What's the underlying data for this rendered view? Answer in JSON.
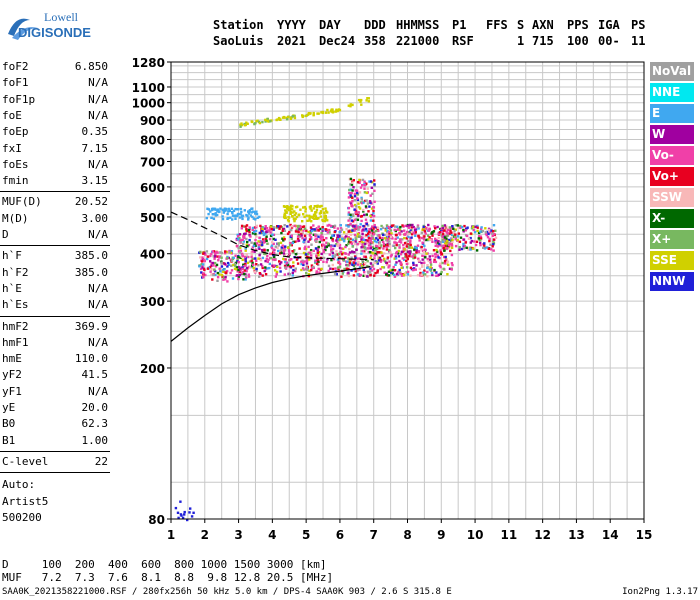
{
  "logo": {
    "line1": "Lowell",
    "line2": "DIGISONDE"
  },
  "header": {
    "row1": [
      "Station",
      "YYYY",
      "DAY",
      "DDD",
      "HHMMSS",
      "P1",
      "FFS",
      "S",
      "AXN",
      "PPS",
      "IGA",
      "PS"
    ],
    "row2": [
      "SaoLuis",
      "2021",
      "Dec24",
      "358",
      "221000",
      "RSF",
      "",
      "1",
      "715",
      "100",
      "00-",
      "11"
    ]
  },
  "params": {
    "group1": [
      {
        "name": "foF2",
        "value": "6.850"
      },
      {
        "name": "foF1",
        "value": "N/A"
      },
      {
        "name": "foF1p",
        "value": "N/A"
      },
      {
        "name": "foE",
        "value": "N/A"
      },
      {
        "name": "foEp",
        "value": "0.35"
      },
      {
        "name": "fxI",
        "value": "7.15"
      },
      {
        "name": "foEs",
        "value": "N/A"
      },
      {
        "name": "fmin",
        "value": "3.15"
      }
    ],
    "group2": [
      {
        "name": "MUF(D)",
        "value": "20.52"
      },
      {
        "name": "M(D)",
        "value": "3.00"
      },
      {
        "name": "D",
        "value": "N/A"
      }
    ],
    "group3": [
      {
        "name": "h`F",
        "value": "385.0"
      },
      {
        "name": "h`F2",
        "value": "385.0"
      },
      {
        "name": "h`E",
        "value": "N/A"
      },
      {
        "name": "h`Es",
        "value": "N/A"
      }
    ],
    "group4": [
      {
        "name": "hmF2",
        "value": "369.9"
      },
      {
        "name": "hmF1",
        "value": "N/A"
      },
      {
        "name": "hmE",
        "value": "110.0"
      },
      {
        "name": "yF2",
        "value": "41.5"
      },
      {
        "name": "yF1",
        "value": "N/A"
      },
      {
        "name": "yE",
        "value": "20.0"
      },
      {
        "name": "B0",
        "value": "62.3"
      },
      {
        "name": "B1",
        "value": "1.00"
      }
    ],
    "group5": [
      {
        "name": "C-level",
        "value": "22"
      }
    ],
    "auto": [
      "Auto:",
      "Artist5",
      "500200"
    ]
  },
  "legend": [
    {
      "label": "NoVal",
      "color": "#a0a0a0"
    },
    {
      "label": "NNE",
      "color": "#00e8f0"
    },
    {
      "label": "E",
      "color": "#40a8f0"
    },
    {
      "label": "W",
      "color": "#a000a0"
    },
    {
      "label": "Vo-",
      "color": "#f040a8"
    },
    {
      "label": "Vo+",
      "color": "#e80020"
    },
    {
      "label": "SSW",
      "color": "#f8b8b8"
    },
    {
      "label": "X-",
      "color": "#006800"
    },
    {
      "label": "X+",
      "color": "#78b860"
    },
    {
      "label": "SSE",
      "color": "#d0d000"
    },
    {
      "label": "NNW",
      "color": "#2020d8"
    }
  ],
  "muf_table": {
    "d_label": "D",
    "d_values": [
      "100",
      "200",
      "400",
      "600",
      "800",
      "1000",
      "1500",
      "3000"
    ],
    "d_unit": "[km]",
    "muf_label": "MUF",
    "muf_values": [
      "7.2",
      "7.3",
      "7.6",
      "8.1",
      "8.8",
      "9.8",
      "12.8",
      "20.5"
    ],
    "muf_unit": "[MHz]"
  },
  "footer": {
    "left": "SAA0K_2021358221000.RSF / 280fx256h 50 kHz 5.0 km / DPS-4 SAA0K 903 / 2.6 S 315.8 E",
    "right": "Ion2Png 1.3.17"
  },
  "chart_data": {
    "type": "scatter",
    "x_ticks": [
      1,
      2,
      3,
      4,
      5,
      6,
      7,
      8,
      9,
      10,
      11,
      12,
      13,
      14,
      15
    ],
    "y_ticks": [
      80,
      200,
      300,
      400,
      500,
      600,
      700,
      800,
      900,
      1000,
      1100,
      1280
    ],
    "xlim": [
      1,
      15
    ],
    "ylim": [
      80,
      1280
    ],
    "y_scale": "log",
    "grid": true,
    "legend_position": "right",
    "clusters": [
      {
        "color_key": "mixed",
        "x_range": [
          2.9,
          9.3
        ],
        "y_range": [
          350,
          480
        ],
        "count": 1400
      },
      {
        "color_key": "mixed",
        "x_range": [
          9.0,
          10.6
        ],
        "y_range": [
          410,
          480
        ],
        "count": 160
      },
      {
        "color_key": "mixed",
        "x_range": [
          6.2,
          7.0
        ],
        "y_range": [
          350,
          640
        ],
        "count": 220
      },
      {
        "color_key": "mixed",
        "x_range": [
          1.8,
          3.2
        ],
        "y_range": [
          340,
          410
        ],
        "count": 180
      },
      {
        "color_key": "SSE",
        "x_range": [
          4.3,
          5.6
        ],
        "y_range": [
          490,
          540
        ],
        "count": 110
      },
      {
        "color_key": "E",
        "x_range": [
          2.0,
          3.6
        ],
        "y_range": [
          495,
          530
        ],
        "count": 90
      },
      {
        "color_key": "NNW",
        "x_range": [
          1.1,
          1.7
        ],
        "y_range": [
          80,
          90
        ],
        "count": 14
      }
    ],
    "echo_trace": [
      {
        "x": 2.9,
        "y": 875
      },
      {
        "x": 3.5,
        "y": 895
      },
      {
        "x": 4.0,
        "y": 910
      },
      {
        "x": 4.5,
        "y": 920
      },
      {
        "x": 5.0,
        "y": 935
      },
      {
        "x": 5.6,
        "y": 955
      },
      {
        "x": 6.0,
        "y": 965
      }
    ],
    "echo_trace_tail": [
      {
        "x": 6.3,
        "y": 980
      },
      {
        "x": 6.6,
        "y": 1010
      },
      {
        "x": 6.8,
        "y": 1020
      }
    ],
    "profile_solid": [
      {
        "x": 1.0,
        "y": 235
      },
      {
        "x": 1.5,
        "y": 255
      },
      {
        "x": 2.0,
        "y": 275
      },
      {
        "x": 2.5,
        "y": 295
      },
      {
        "x": 3.0,
        "y": 312
      },
      {
        "x": 3.5,
        "y": 325
      },
      {
        "x": 4.0,
        "y": 336
      },
      {
        "x": 4.5,
        "y": 344
      },
      {
        "x": 5.0,
        "y": 350
      },
      {
        "x": 5.5,
        "y": 355
      },
      {
        "x": 6.0,
        "y": 360
      },
      {
        "x": 6.5,
        "y": 365
      },
      {
        "x": 6.9,
        "y": 370
      }
    ],
    "profile_dashed": [
      {
        "x": 1.0,
        "y": 515
      },
      {
        "x": 1.5,
        "y": 492
      },
      {
        "x": 2.0,
        "y": 468
      },
      {
        "x": 2.5,
        "y": 445
      },
      {
        "x": 3.0,
        "y": 422
      },
      {
        "x": 3.5,
        "y": 408
      },
      {
        "x": 4.0,
        "y": 398
      },
      {
        "x": 4.5,
        "y": 392
      },
      {
        "x": 5.0,
        "y": 390
      },
      {
        "x": 5.5,
        "y": 389
      },
      {
        "x": 6.0,
        "y": 388
      },
      {
        "x": 6.5,
        "y": 387
      },
      {
        "x": 7.0,
        "y": 386
      }
    ]
  }
}
